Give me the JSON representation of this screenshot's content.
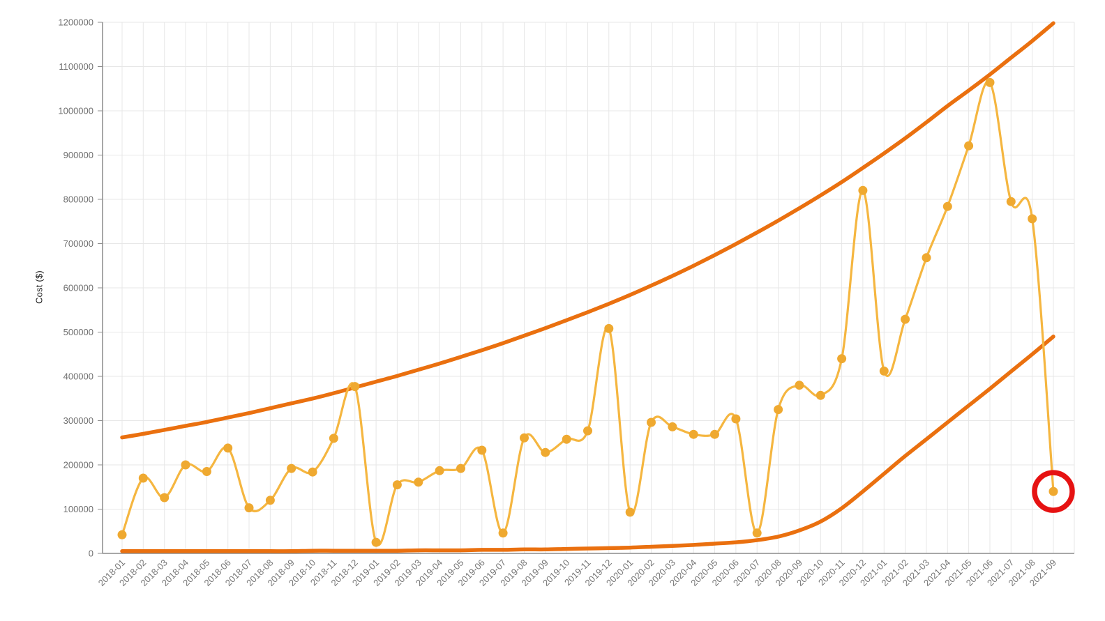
{
  "page": {
    "background": "#ffffff"
  },
  "chart_data": {
    "type": "line",
    "title": "",
    "xlabel": "",
    "ylabel": "Cost ($)",
    "ylim": [
      0,
      1200000
    ],
    "ytick_step": 100000,
    "yticks": [
      0,
      100000,
      200000,
      300000,
      400000,
      500000,
      600000,
      700000,
      800000,
      900000,
      1000000,
      1100000,
      1200000
    ],
    "grid": true,
    "legend": "none",
    "categories": [
      "2018-01",
      "2018-02",
      "2018-03",
      "2018-04",
      "2018-05",
      "2018-06",
      "2018-07",
      "2018-08",
      "2018-09",
      "2018-10",
      "2018-11",
      "2018-12",
      "2019-01",
      "2019-02",
      "2019-03",
      "2019-04",
      "2019-05",
      "2019-06",
      "2019-07",
      "2019-08",
      "2019-09",
      "2019-10",
      "2019-11",
      "2019-12",
      "2020-01",
      "2020-02",
      "2020-03",
      "2020-04",
      "2020-05",
      "2020-06",
      "2020-07",
      "2020-08",
      "2020-09",
      "2020-10",
      "2020-11",
      "2020-12",
      "2021-01",
      "2021-02",
      "2021-03",
      "2021-04",
      "2021-05",
      "2021-06",
      "2021-07",
      "2021-08",
      "2021-09"
    ],
    "series": [
      {
        "name": "monthly-cost",
        "style": "smooth-line-with-markers",
        "line_color": "#F5B640",
        "marker_color": "#EFA930",
        "values": [
          42000,
          170000,
          126000,
          200000,
          185000,
          238000,
          103000,
          120000,
          192000,
          184000,
          260000,
          377000,
          25000,
          155000,
          161000,
          187000,
          192000,
          233000,
          46000,
          261000,
          228000,
          258000,
          277000,
          508000,
          93000,
          296000,
          286000,
          269000,
          269000,
          304000,
          46000,
          325000,
          380000,
          357000,
          440000,
          820000,
          412000,
          529000,
          668000,
          784000,
          921000,
          1064000,
          795000,
          756000,
          140000
        ]
      },
      {
        "name": "upper-bound",
        "style": "smooth-line",
        "line_color": "#EA700F",
        "values": [
          262000,
          270000,
          279000,
          288000,
          297000,
          307000,
          317000,
          328000,
          339000,
          350000,
          362000,
          375000,
          388000,
          401000,
          415000,
          429000,
          444000,
          459000,
          475000,
          492000,
          509000,
          527000,
          545000,
          564000,
          584000,
          605000,
          627000,
          650000,
          674000,
          699000,
          725000,
          752000,
          780000,
          809000,
          839000,
          871000,
          904000,
          938000,
          974000,
          1011000,
          1046000,
          1082000,
          1120000,
          1158000,
          1198000
        ]
      },
      {
        "name": "lower-bound",
        "style": "smooth-line",
        "line_color": "#EA700F",
        "values": [
          5000,
          5000,
          5000,
          5000,
          5000,
          5000,
          5000,
          5000,
          5000,
          6000,
          6000,
          6000,
          6000,
          6000,
          7000,
          7000,
          7000,
          8000,
          8000,
          9000,
          9000,
          10000,
          11000,
          12000,
          13000,
          15000,
          17000,
          19000,
          22000,
          25000,
          30000,
          38000,
          52000,
          72000,
          102000,
          140000,
          180000,
          220000,
          258000,
          296000,
          334000,
          372000,
          411000,
          450000,
          490000
        ]
      }
    ],
    "annotations": [
      {
        "type": "circle-highlight",
        "category": "2021-09",
        "value": 140000,
        "color": "#E61212"
      }
    ],
    "axis": {
      "axis_line_color": "#8C8C8C",
      "grid_color": "#E7E7E7",
      "y_label_color": "#6E6E6E",
      "x_label_color": "#757575",
      "x_label_rotation_deg": -45
    }
  }
}
